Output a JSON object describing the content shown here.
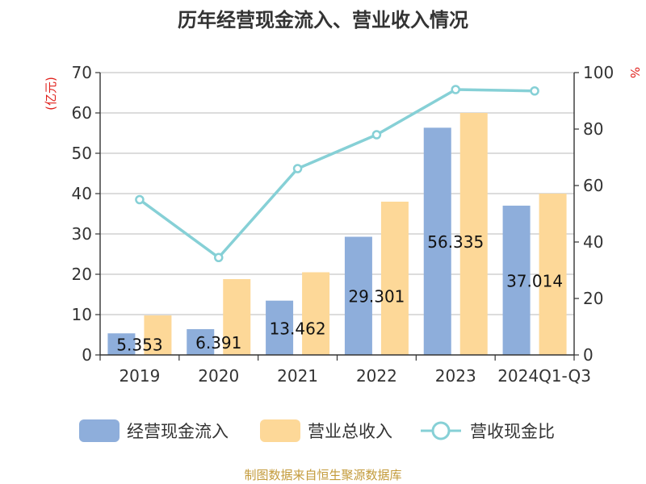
{
  "chart_data": {
    "type": "bar",
    "title": "历年经营现金流入、营业收入情况",
    "categories": [
      "2019",
      "2020",
      "2021",
      "2022",
      "2023",
      "2024Q1-Q3"
    ],
    "series": [
      {
        "name": "经营现金流入",
        "type": "bar",
        "axis": "left",
        "color": "#8eaedb",
        "values": [
          5.353,
          6.391,
          13.462,
          29.301,
          56.335,
          37.014
        ],
        "labels": [
          "5.353",
          "6.391",
          "13.462",
          "29.301",
          "56.335",
          "37.014"
        ]
      },
      {
        "name": "营业总收入",
        "type": "bar",
        "axis": "left",
        "color": "#fdd898",
        "values": [
          9.8,
          18.8,
          20.5,
          38.0,
          60.0,
          40.0
        ]
      },
      {
        "name": "营收现金比",
        "type": "line",
        "axis": "right",
        "color": "#86d0d6",
        "values": [
          55,
          34.5,
          66,
          78,
          94,
          93.5
        ]
      }
    ],
    "y_left": {
      "label": "(亿元)",
      "min": 0,
      "max": 70,
      "ticks": [
        0,
        10,
        20,
        30,
        40,
        50,
        60,
        70
      ]
    },
    "y_right": {
      "label": "%",
      "min": 0,
      "max": 100,
      "ticks": [
        0,
        20,
        40,
        60,
        80,
        100
      ]
    },
    "grid": true,
    "legend_position": "bottom"
  },
  "footer": "制图数据来自恒生聚源数据库"
}
